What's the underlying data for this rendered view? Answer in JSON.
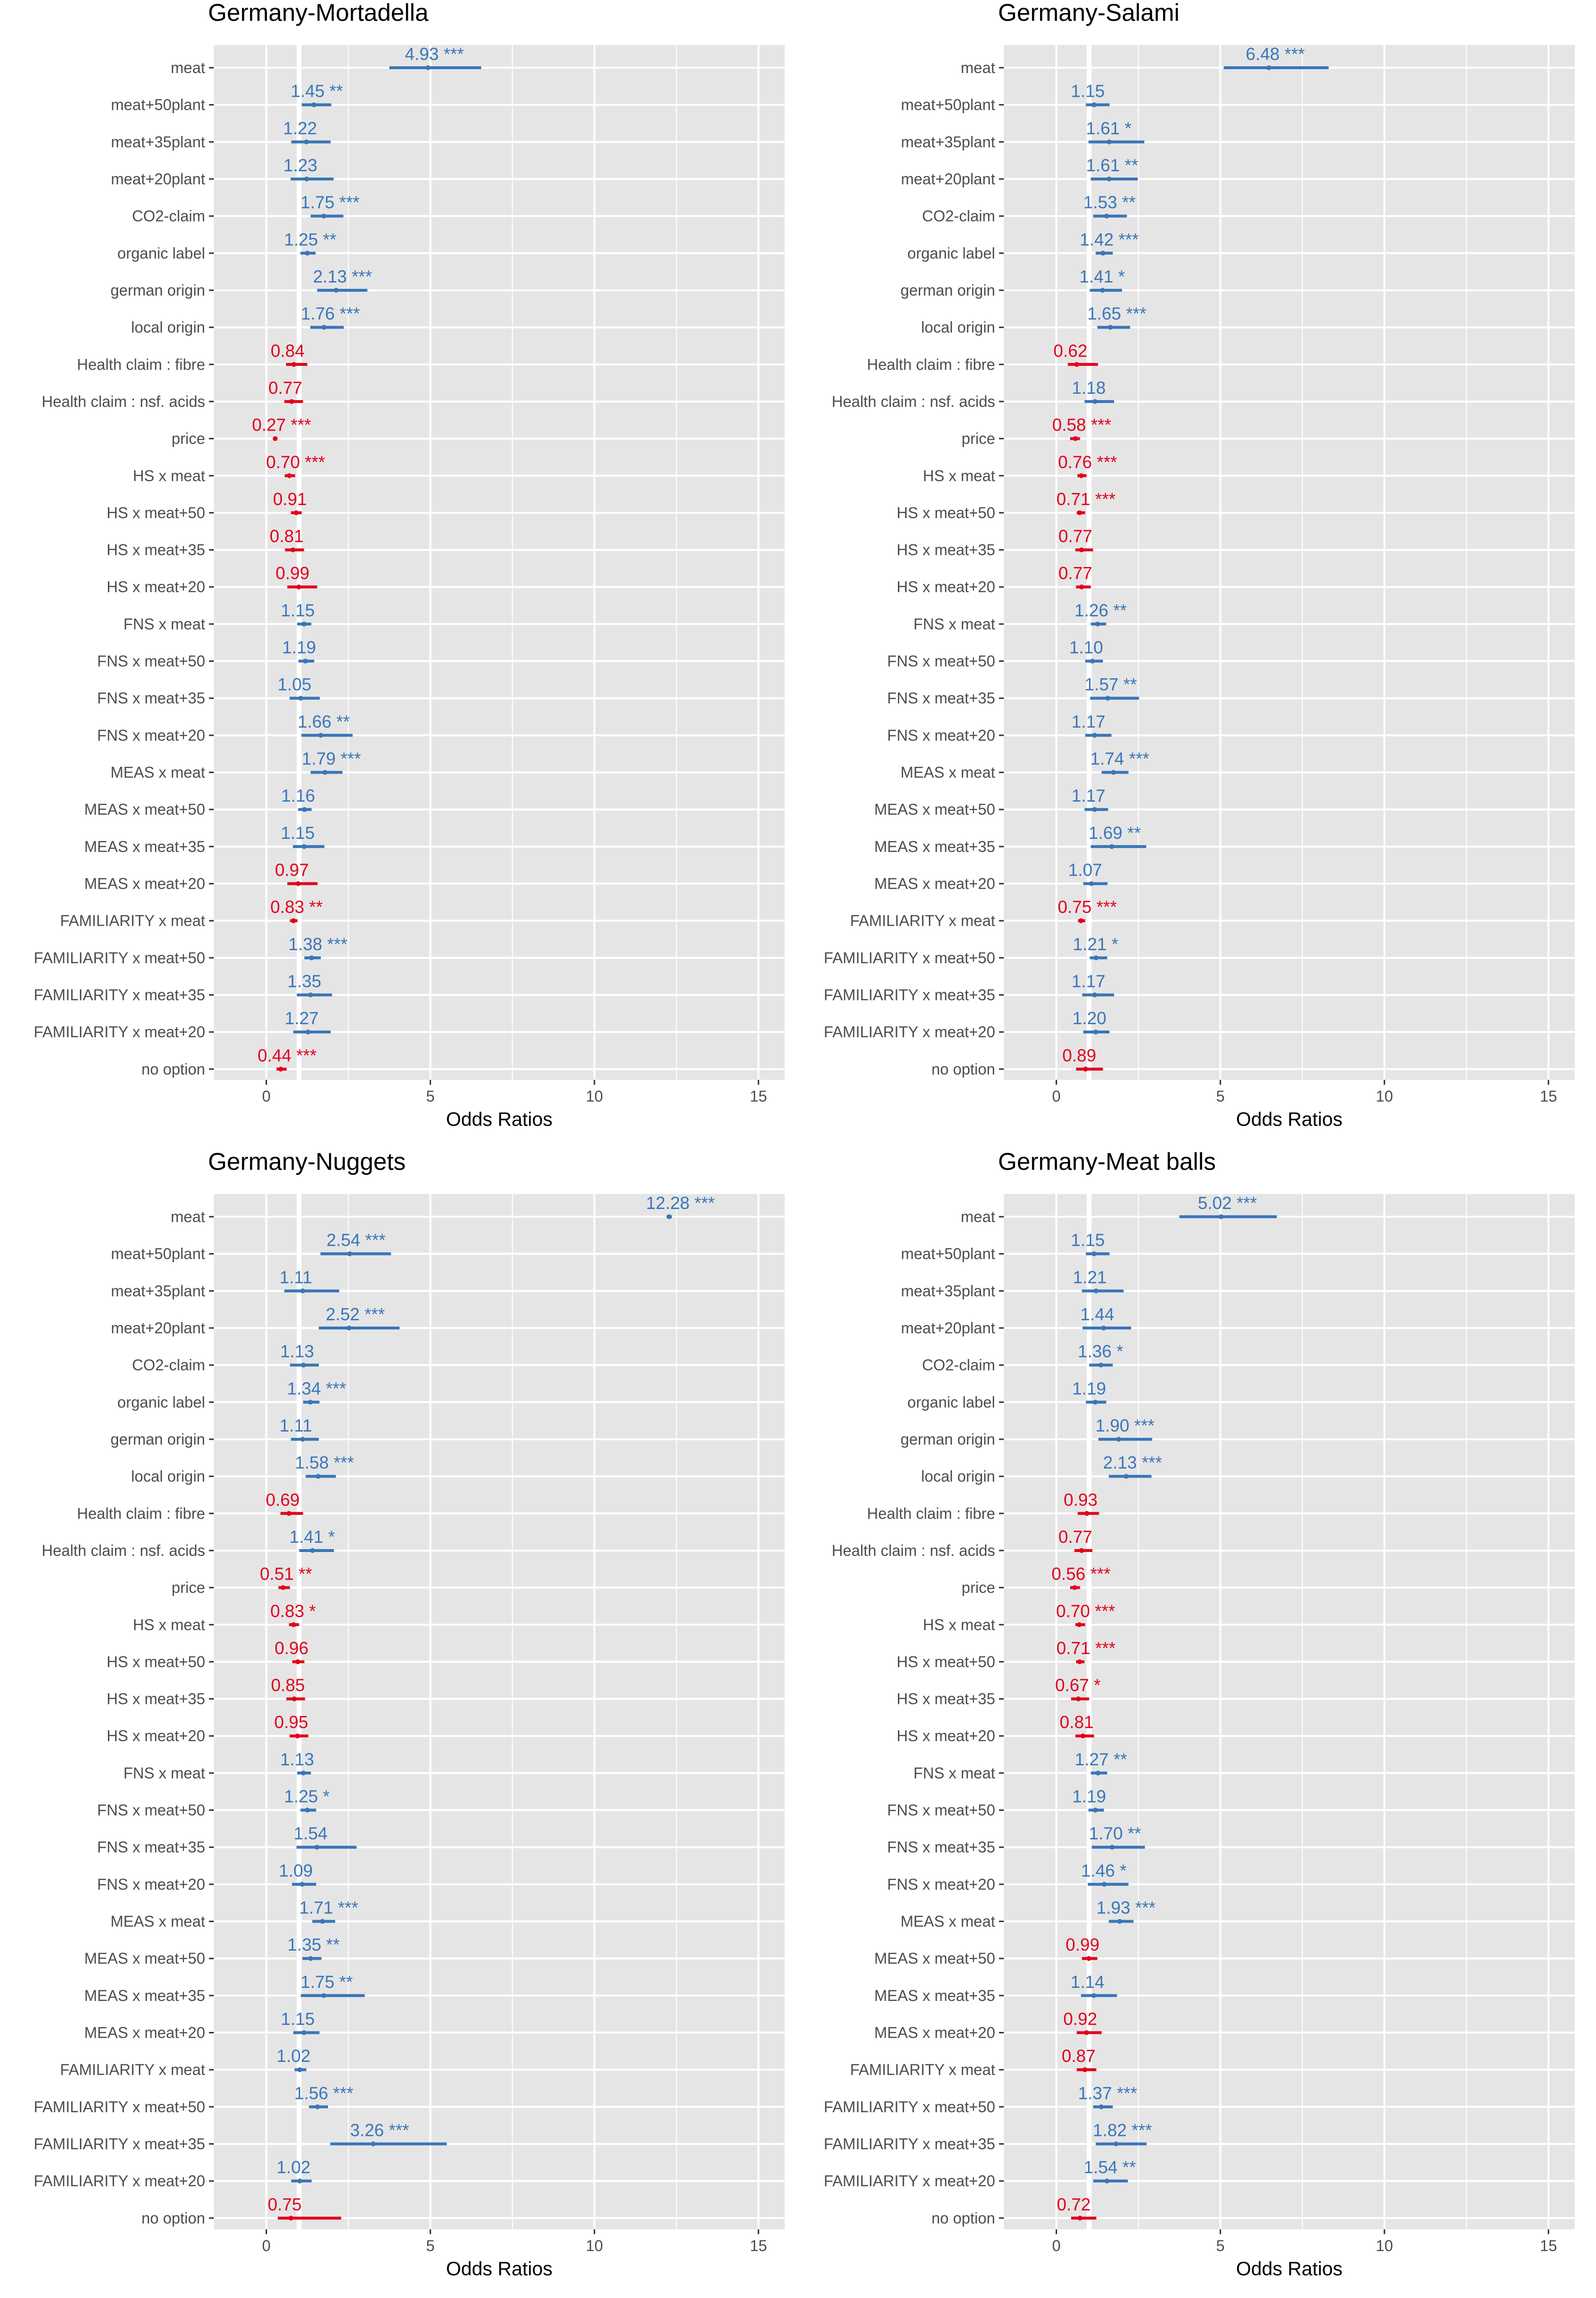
{
  "colors": {
    "positive": "#3a76b8",
    "negative": "#e3001b",
    "panel_background": "#e5e5e5",
    "gridline": "#ffffff",
    "reference_line": "#ffffff"
  },
  "chart_data": [
    {
      "type": "forest",
      "title": "Germany-Mortadella",
      "xlabel": "Odds Ratios",
      "xlim": [
        -1.6,
        15.8
      ],
      "xticks": [
        0,
        5,
        10,
        15
      ],
      "reference_line": 1,
      "categories": [
        "meat",
        "meat+50plant",
        "meat+35plant",
        "meat+20plant",
        "CO2-claim",
        "organic label",
        "german origin",
        "local origin",
        "Health claim :  fibre",
        "Health claim :  nsf. acids",
        "price",
        "HS x meat",
        "HS x meat+50",
        "HS x meat+35",
        "HS x meat+20",
        "FNS x meat",
        "FNS x meat+50",
        "FNS x meat+35",
        "FNS x meat+20",
        "MEAS x meat",
        "MEAS x meat+50",
        "MEAS x meat+35",
        "MEAS x meat+20",
        "FAMILIARITY x meat",
        "FAMILIARITY x meat+50",
        "FAMILIARITY x meat+35",
        "FAMILIARITY x meat+20",
        "no option"
      ],
      "values": [
        4.93,
        1.45,
        1.22,
        1.23,
        1.75,
        1.25,
        2.13,
        1.76,
        0.84,
        0.77,
        0.27,
        0.7,
        0.91,
        0.81,
        0.99,
        1.15,
        1.19,
        1.05,
        1.66,
        1.79,
        1.16,
        1.15,
        0.97,
        0.83,
        1.38,
        1.35,
        1.27,
        0.44
      ],
      "labels": [
        "4.93 ***",
        "1.45 **",
        "1.22",
        "1.23",
        "1.75 ***",
        "1.25 **",
        "2.13 ***",
        "1.76 ***",
        "0.84",
        "0.77",
        "0.27 ***",
        "0.70 ***",
        "0.91",
        "0.81",
        "0.99",
        "1.15",
        "1.19",
        "1.05",
        "1.66 **",
        "1.79 ***",
        "1.16",
        "1.15",
        "0.97",
        "0.83 **",
        "1.38 ***",
        "1.35",
        "1.27",
        "0.44 ***"
      ],
      "ci_low": [
        3.75,
        1.08,
        0.76,
        0.74,
        1.35,
        1.04,
        1.55,
        1.34,
        0.6,
        0.55,
        0.22,
        0.56,
        0.75,
        0.57,
        0.64,
        0.94,
        0.98,
        0.71,
        1.07,
        1.35,
        0.97,
        0.81,
        0.64,
        0.72,
        1.16,
        0.93,
        0.82,
        0.31
      ],
      "ci_high": [
        6.55,
        1.98,
        1.96,
        2.05,
        2.35,
        1.5,
        3.08,
        2.36,
        1.25,
        1.12,
        0.33,
        0.88,
        1.08,
        1.15,
        1.55,
        1.37,
        1.46,
        1.63,
        2.63,
        2.32,
        1.38,
        1.77,
        1.56,
        0.95,
        1.66,
        2.0,
        1.96,
        0.62
      ]
    },
    {
      "type": "forest",
      "title": "Germany-Salami",
      "xlabel": "Odds Ratios",
      "xlim": [
        -1.6,
        15.8
      ],
      "xticks": [
        0,
        5,
        10,
        15
      ],
      "reference_line": 1,
      "categories": [
        "meat",
        "meat+50plant",
        "meat+35plant",
        "meat+20plant",
        "CO2-claim",
        "organic label",
        "german origin",
        "local origin",
        "Health claim :  fibre",
        "Health claim :  nsf. acids",
        "price",
        "HS x meat",
        "HS x meat+50",
        "HS x meat+35",
        "HS x meat+20",
        "FNS x meat",
        "FNS x meat+50",
        "FNS x meat+35",
        "FNS x meat+20",
        "MEAS x meat",
        "MEAS x meat+50",
        "MEAS x meat+35",
        "MEAS x meat+20",
        "FAMILIARITY x meat",
        "FAMILIARITY x meat+50",
        "FAMILIARITY x meat+35",
        "FAMILIARITY x meat+20",
        "no option"
      ],
      "values": [
        6.48,
        1.15,
        1.61,
        1.61,
        1.53,
        1.42,
        1.41,
        1.65,
        0.62,
        1.18,
        0.58,
        0.76,
        0.71,
        0.77,
        0.77,
        1.26,
        1.1,
        1.57,
        1.17,
        1.74,
        1.17,
        1.69,
        1.07,
        0.75,
        1.21,
        1.17,
        1.2,
        0.89
      ],
      "labels": [
        "6.48 ***",
        "1.15",
        "1.61 *",
        "1.61 **",
        "1.53 **",
        "1.42 ***",
        "1.41 *",
        "1.65 ***",
        "0.62",
        "1.18",
        "0.58 ***",
        "0.76 ***",
        "0.71 ***",
        "0.77",
        "0.77",
        "1.26 **",
        "1.10",
        "1.57 **",
        "1.17",
        "1.74 ***",
        "1.17",
        "1.69 **",
        "1.07",
        "0.75 ***",
        "1.21 *",
        "1.17",
        "1.20",
        "0.89"
      ],
      "ci_low": [
        5.1,
        0.9,
        0.98,
        1.05,
        1.12,
        1.2,
        1.02,
        1.25,
        0.35,
        0.86,
        0.42,
        0.64,
        0.62,
        0.58,
        0.6,
        1.05,
        0.88,
        1.03,
        0.88,
        1.38,
        0.86,
        1.05,
        0.82,
        0.66,
        1.02,
        0.79,
        0.82,
        0.6
      ],
      "ci_high": [
        8.3,
        1.62,
        2.68,
        2.48,
        2.15,
        1.72,
        2.0,
        2.25,
        1.27,
        1.76,
        0.72,
        0.92,
        0.88,
        1.12,
        1.05,
        1.52,
        1.42,
        2.52,
        1.68,
        2.2,
        1.58,
        2.74,
        1.56,
        0.88,
        1.55,
        1.76,
        1.62,
        1.42
      ]
    },
    {
      "type": "forest",
      "title": "Germany-Nuggets",
      "xlabel": "Odds Ratios",
      "xlim": [
        -1.6,
        15.8
      ],
      "xticks": [
        0,
        5,
        10,
        15
      ],
      "reference_line": 1,
      "categories": [
        "meat",
        "meat+50plant",
        "meat+35plant",
        "meat+20plant",
        "CO2-claim",
        "organic label",
        "german origin",
        "local origin",
        "Health claim :  fibre",
        "Health claim :  nsf. acids",
        "price",
        "HS x meat",
        "HS x meat+50",
        "HS x meat+35",
        "HS x meat+20",
        "FNS x meat",
        "FNS x meat+50",
        "FNS x meat+35",
        "FNS x meat+20",
        "MEAS x meat",
        "MEAS x meat+50",
        "MEAS x meat+35",
        "MEAS x meat+20",
        "FAMILIARITY x meat",
        "FAMILIARITY x meat+50",
        "FAMILIARITY x meat+35",
        "FAMILIARITY x meat+20",
        "no option"
      ],
      "values": [
        12.28,
        2.54,
        1.11,
        2.52,
        1.13,
        1.34,
        1.11,
        1.58,
        0.69,
        1.41,
        0.51,
        0.83,
        0.96,
        0.85,
        0.95,
        1.13,
        1.25,
        1.54,
        1.09,
        1.71,
        1.35,
        1.75,
        1.15,
        1.02,
        1.56,
        3.26,
        1.02,
        0.75
      ],
      "labels": [
        "12.28 ***",
        "2.54 ***",
        "1.11",
        "2.52 ***",
        "1.13",
        "1.34 ***",
        "1.11",
        "1.58 ***",
        "0.69",
        "1.41 *",
        "0.51 **",
        "0.83 *",
        "0.96",
        "0.85",
        "0.95",
        "1.13",
        "1.25 *",
        "1.54",
        "1.09",
        "1.71 ***",
        "1.35 **",
        "1.75 **",
        "1.15",
        "1.02",
        "1.56 ***",
        "3.26 ***",
        "1.02",
        "0.75"
      ],
      "ci_low": [
        12.2,
        1.65,
        0.55,
        1.6,
        0.72,
        1.12,
        0.75,
        1.2,
        0.43,
        1.0,
        0.37,
        0.69,
        0.79,
        0.61,
        0.71,
        0.94,
        1.04,
        0.92,
        0.78,
        1.4,
        1.1,
        1.05,
        0.82,
        0.86,
        1.3,
        1.95,
        0.76,
        0.35
      ],
      "ci_high": [
        12.36,
        3.8,
        2.22,
        4.06,
        1.6,
        1.62,
        1.6,
        2.12,
        1.12,
        2.06,
        0.72,
        1.0,
        1.16,
        1.18,
        1.28,
        1.36,
        1.52,
        2.75,
        1.52,
        2.1,
        1.68,
        3.0,
        1.62,
        1.22,
        1.88,
        5.5,
        1.38,
        2.28
      ]
    },
    {
      "type": "forest",
      "title": "Germany-Meat balls",
      "xlabel": "Odds Ratios",
      "xlim": [
        -1.6,
        15.8
      ],
      "xticks": [
        0,
        5,
        10,
        15
      ],
      "reference_line": 1,
      "categories": [
        "meat",
        "meat+50plant",
        "meat+35plant",
        "meat+20plant",
        "CO2-claim",
        "organic label",
        "german origin",
        "local origin",
        "Health claim :  fibre",
        "Health claim :  nsf. acids",
        "price",
        "HS x meat",
        "HS x meat+50",
        "HS x meat+35",
        "HS x meat+20",
        "FNS x meat",
        "FNS x meat+50",
        "FNS x meat+35",
        "FNS x meat+20",
        "MEAS x meat",
        "MEAS x meat+50",
        "MEAS x meat+35",
        "MEAS x meat+20",
        "FAMILIARITY x meat",
        "FAMILIARITY x meat+50",
        "FAMILIARITY x meat+35",
        "FAMILIARITY x meat+20",
        "no option"
      ],
      "values": [
        5.02,
        1.15,
        1.21,
        1.44,
        1.36,
        1.19,
        1.9,
        2.13,
        0.93,
        0.77,
        0.56,
        0.7,
        0.71,
        0.67,
        0.81,
        1.27,
        1.19,
        1.7,
        1.46,
        1.93,
        0.99,
        1.14,
        0.92,
        0.87,
        1.37,
        1.82,
        1.54,
        0.72
      ],
      "labels": [
        "5.02 ***",
        "1.15",
        "1.21",
        "1.44",
        "1.36 *",
        "1.19",
        "1.90 ***",
        "2.13 ***",
        "0.93",
        "0.77",
        "0.56 ***",
        "0.70 ***",
        "0.71 ***",
        "0.67 *",
        "0.81",
        "1.27 **",
        "1.19",
        "1.70 **",
        "1.46 *",
        "1.93 ***",
        "0.99",
        "1.14",
        "0.92",
        "0.87",
        "1.37 ***",
        "1.82 ***",
        "1.54 **",
        "0.72"
      ],
      "ci_low": [
        3.75,
        0.9,
        0.78,
        0.8,
        1.0,
        0.9,
        1.28,
        1.6,
        0.65,
        0.55,
        0.42,
        0.58,
        0.6,
        0.45,
        0.58,
        1.05,
        0.98,
        1.08,
        0.96,
        1.6,
        0.78,
        0.75,
        0.62,
        0.62,
        1.12,
        1.2,
        1.12,
        0.45
      ],
      "ci_high": [
        6.72,
        1.62,
        2.05,
        2.28,
        1.72,
        1.52,
        2.92,
        2.9,
        1.3,
        1.1,
        0.72,
        0.88,
        0.86,
        1.0,
        1.15,
        1.55,
        1.45,
        2.7,
        2.2,
        2.35,
        1.25,
        1.85,
        1.38,
        1.22,
        1.72,
        2.75,
        2.18,
        1.22
      ]
    }
  ]
}
